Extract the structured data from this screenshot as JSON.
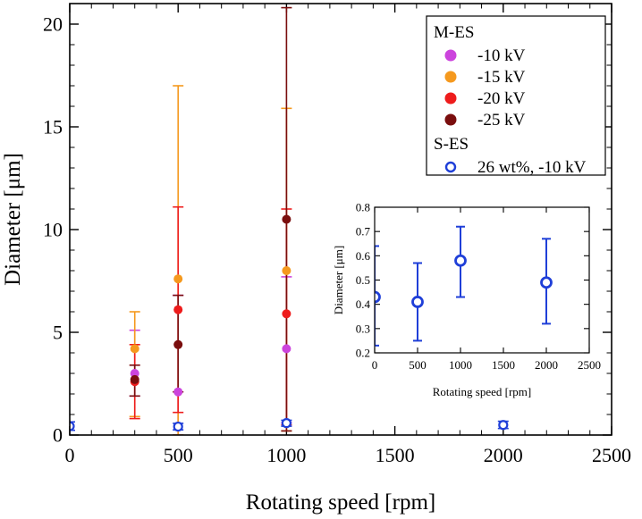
{
  "chart_data": [
    {
      "type": "scatter",
      "xlabel": "Rotating speed [rpm]",
      "ylabel": "Diameter [μm]",
      "xlim": [
        0,
        2500
      ],
      "ylim": [
        0,
        21
      ],
      "xticks": [
        0,
        500,
        1000,
        1500,
        2000,
        2500
      ],
      "yticks": [
        0,
        5,
        10,
        15,
        20
      ],
      "legend": {
        "placement": "top-right",
        "groups": [
          {
            "title": "M-ES",
            "entries": [
              0,
              1,
              2,
              3
            ]
          },
          {
            "title": "S-ES",
            "entries": [
              4
            ]
          }
        ]
      },
      "series": [
        {
          "name": "-10 kV",
          "color": "#cc44dd",
          "marker": "filled-circle",
          "points": [
            {
              "x": 300,
              "y": 3.0,
              "err_low": 1.9,
              "err_high": 5.1
            },
            {
              "x": 500,
              "y": 2.1,
              "err_low": 0.0,
              "err_high": 6.8
            },
            {
              "x": 1000,
              "y": 4.2,
              "err_low": 0.6,
              "err_high": 7.7
            }
          ]
        },
        {
          "name": "-15 kV",
          "color": "#f5991e",
          "marker": "filled-circle",
          "points": [
            {
              "x": 300,
              "y": 4.2,
              "err_low": 0.9,
              "err_high": 6.0
            },
            {
              "x": 500,
              "y": 7.6,
              "err_low": 0.0,
              "err_high": 17.0
            },
            {
              "x": 1000,
              "y": 8.0,
              "err_low": 0.2,
              "err_high": 15.9
            }
          ]
        },
        {
          "name": "-20 kV",
          "color": "#ee1c1c",
          "marker": "filled-circle",
          "points": [
            {
              "x": 300,
              "y": 2.6,
              "err_low": 0.8,
              "err_high": 4.4
            },
            {
              "x": 500,
              "y": 6.1,
              "err_low": 1.1,
              "err_high": 11.1
            },
            {
              "x": 1000,
              "y": 5.9,
              "err_low": 0.5,
              "err_high": 11.0
            }
          ]
        },
        {
          "name": "-25 kV",
          "color": "#7a0e0e",
          "marker": "filled-circle",
          "points": [
            {
              "x": 300,
              "y": 2.7,
              "err_low": 1.9,
              "err_high": 3.4
            },
            {
              "x": 500,
              "y": 4.4,
              "err_low": 2.1,
              "err_high": 6.8
            },
            {
              "x": 1000,
              "y": 10.5,
              "err_low": 0.2,
              "err_high": 20.8
            }
          ]
        },
        {
          "name": "26 wt%, -10 kV",
          "color": "#1f3fd8",
          "marker": "open-circle",
          "points": [
            {
              "x": 0,
              "y": 0.43,
              "err_low": 0.23,
              "err_high": 0.64
            },
            {
              "x": 500,
              "y": 0.41,
              "err_low": 0.25,
              "err_high": 0.57
            },
            {
              "x": 1000,
              "y": 0.58,
              "err_low": 0.43,
              "err_high": 0.72
            },
            {
              "x": 2000,
              "y": 0.49,
              "err_low": 0.32,
              "err_high": 0.67
            }
          ]
        }
      ]
    },
    {
      "type": "scatter",
      "role": "inset",
      "xlabel": "Rotating speed [rpm]",
      "ylabel": "Diameter [μm]",
      "xlim": [
        0,
        2500
      ],
      "ylim": [
        0.2,
        0.8
      ],
      "xticks": [
        0,
        500,
        1000,
        1500,
        2000,
        2500
      ],
      "yticks": [
        0.2,
        0.3,
        0.4,
        0.5,
        0.6,
        0.7,
        0.8
      ],
      "series": [
        {
          "color": "#1f3fd8",
          "marker": "open-circle",
          "points": [
            {
              "x": 0,
              "y": 0.43,
              "err_low": 0.23,
              "err_high": 0.64
            },
            {
              "x": 500,
              "y": 0.41,
              "err_low": 0.25,
              "err_high": 0.57
            },
            {
              "x": 1000,
              "y": 0.58,
              "err_low": 0.43,
              "err_high": 0.72
            },
            {
              "x": 2000,
              "y": 0.49,
              "err_low": 0.32,
              "err_high": 0.67
            }
          ]
        }
      ]
    }
  ]
}
